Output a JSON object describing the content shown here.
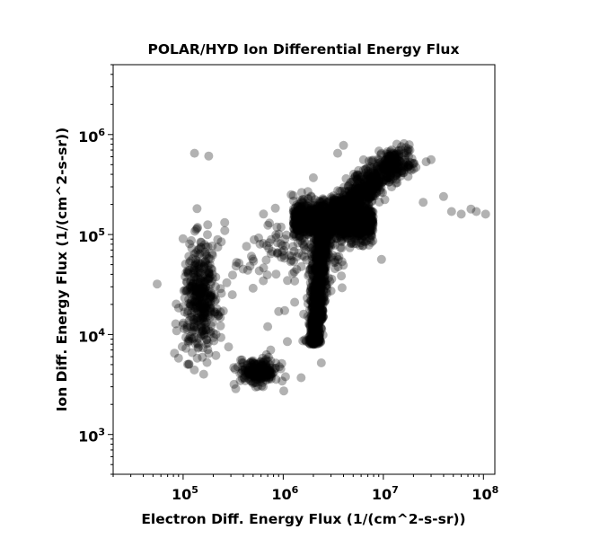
{
  "chart_data": {
    "type": "scatter",
    "title": "POLAR/HYD  Ion Differential Energy Flux",
    "xlabel": "Electron Diff. Energy Flux (1/(cm^2-s-sr))",
    "ylabel": "Ion Diff. Energy Flux (1/(cm^2-s-sr))",
    "xscale": "log",
    "yscale": "log",
    "xlim": [
      20000,
      130000000
    ],
    "ylim": [
      400,
      5000000
    ],
    "xticks": [
      {
        "value": 100000,
        "base": "10",
        "exp": "5"
      },
      {
        "value": 1000000,
        "base": "10",
        "exp": "6"
      },
      {
        "value": 10000000,
        "base": "10",
        "exp": "7"
      },
      {
        "value": 100000000,
        "base": "10",
        "exp": "8"
      }
    ],
    "yticks": [
      {
        "value": 1000,
        "base": "10",
        "exp": "3"
      },
      {
        "value": 10000,
        "base": "10",
        "exp": "4"
      },
      {
        "value": 100000,
        "base": "10",
        "exp": "5"
      },
      {
        "value": 1000000,
        "base": "10",
        "exp": "6"
      }
    ],
    "grid": false,
    "legend": "none",
    "marker_color": "#000000",
    "marker_alpha": 0.3,
    "clusters": [
      {
        "n": 1200,
        "xlog": [
          6.1,
          6.9
        ],
        "ylog": [
          4.9,
          5.35
        ],
        "note": "dense band"
      },
      {
        "n": 900,
        "xlog": [
          6.25,
          6.45
        ],
        "ylog": [
          3.9,
          5.0
        ],
        "note": "vertical column"
      },
      {
        "n": 900,
        "xlog": [
          6.35,
          7.2
        ],
        "ylog": [
          5.05,
          5.8
        ],
        "note": "diagonal core"
      },
      {
        "n": 400,
        "xlog": [
          5.0,
          5.35
        ],
        "ylog": [
          3.8,
          4.9
        ],
        "note": "left group"
      },
      {
        "n": 220,
        "xlog": [
          5.55,
          5.95
        ],
        "ylog": [
          3.5,
          3.75
        ],
        "note": "bottom group"
      },
      {
        "n": 150,
        "xlog": [
          5.5,
          6.8
        ],
        "ylog": [
          4.4,
          5.2
        ],
        "note": "lower loop"
      }
    ],
    "points": [
      [
        55000,
        32000
      ],
      [
        130000,
        650000
      ],
      [
        180000,
        610000
      ],
      [
        48000000,
        170000
      ],
      [
        40000000,
        240000
      ],
      [
        60000000,
        160000
      ],
      [
        75000000,
        180000
      ],
      [
        85000000,
        170000
      ],
      [
        105000000,
        160000
      ],
      [
        30000000,
        560000
      ],
      [
        20000000,
        450000
      ],
      [
        25000000,
        210000
      ],
      [
        3500000,
        650000
      ],
      [
        4000000,
        780000
      ],
      [
        2000000,
        370000
      ],
      [
        1200000,
        250000
      ],
      [
        750000,
        7000
      ],
      [
        620000,
        3300
      ],
      [
        400000,
        5200
      ],
      [
        1600000,
        16000
      ],
      [
        900000,
        17000
      ],
      [
        1300000,
        21000
      ],
      [
        2400000,
        5200
      ],
      [
        500000,
        29000
      ],
      [
        310000,
        25000
      ],
      [
        82000,
        6500
      ],
      [
        90000,
        5800
      ],
      [
        220000,
        16000
      ],
      [
        700000,
        12000
      ],
      [
        1100000,
        8500
      ]
    ]
  }
}
